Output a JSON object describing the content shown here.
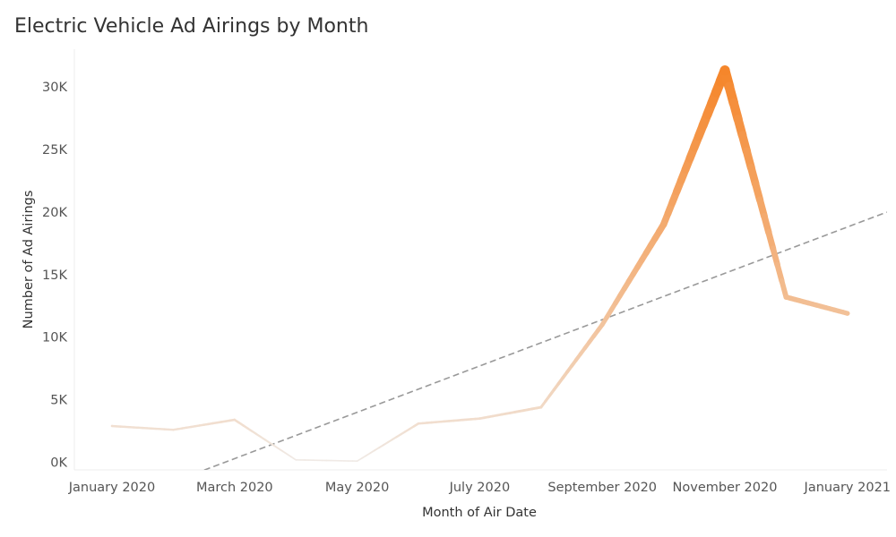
{
  "chart_data": {
    "type": "line",
    "title": "Electric Vehicle Ad Airings by Month",
    "xlabel": "Month of Air Date",
    "ylabel": "Number of Ad Airings",
    "x": [
      "2020-01",
      "2020-02",
      "2020-03",
      "2020-04",
      "2020-05",
      "2020-06",
      "2020-07",
      "2020-08",
      "2020-09",
      "2020-10",
      "2020-11",
      "2020-12",
      "2021-01"
    ],
    "x_tick_labels": [
      {
        "at": "2020-01",
        "label": "January 2020"
      },
      {
        "at": "2020-03",
        "label": "March 2020"
      },
      {
        "at": "2020-05",
        "label": "May 2020"
      },
      {
        "at": "2020-07",
        "label": "July 2020"
      },
      {
        "at": "2020-09",
        "label": "September 2020"
      },
      {
        "at": "2020-11",
        "label": "November 2020"
      },
      {
        "at": "2021-01",
        "label": "January 2021"
      }
    ],
    "y_ticks": [
      {
        "value": 0,
        "label": "0K"
      },
      {
        "value": 5000,
        "label": "5K"
      },
      {
        "value": 10000,
        "label": "10K"
      },
      {
        "value": 15000,
        "label": "15K"
      },
      {
        "value": 20000,
        "label": "20K"
      },
      {
        "value": 25000,
        "label": "25K"
      },
      {
        "value": 30000,
        "label": "30K"
      }
    ],
    "ylim": [
      -600,
      33000
    ],
    "series": [
      {
        "values": [
          2900,
          2600,
          3400,
          200,
          100,
          3100,
          3500,
          4400,
          11000,
          19000,
          31300,
          13200,
          11900
        ],
        "encoding": "line color and width scale with value",
        "color_low": "#f0ebe7",
        "color_high": "#f5862b"
      }
    ],
    "trend_line": {
      "style": "dashed",
      "color": "#999999",
      "start": {
        "x": "2020-01",
        "y": -3400
      },
      "end": {
        "x": "2021-01",
        "y": 18800
      }
    },
    "grid": false,
    "legend": "none"
  }
}
